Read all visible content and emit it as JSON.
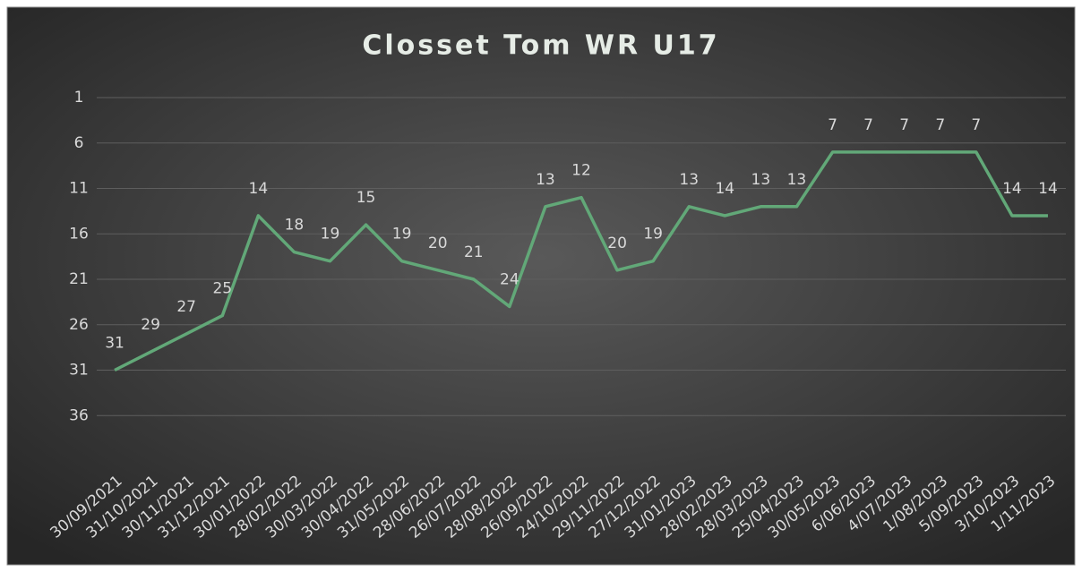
{
  "chart_data": {
    "type": "line",
    "title": "Closset Tom WR U17",
    "categories": [
      "30/09/2021",
      "31/10/2021",
      "30/11/2021",
      "31/12/2021",
      "30/01/2022",
      "28/02/2022",
      "30/03/2022",
      "30/04/2022",
      "31/05/2022",
      "28/06/2022",
      "26/07/2022",
      "28/08/2022",
      "26/09/2022",
      "24/10/2022",
      "29/11/2022",
      "27/12/2022",
      "31/01/2023",
      "28/02/2023",
      "28/03/2023",
      "25/04/2023",
      "30/05/2023",
      "6/06/2023",
      "4/07/2023",
      "1/08/2023",
      "5/09/2023",
      "3/10/2023",
      "1/11/2023"
    ],
    "values": [
      31,
      29,
      27,
      25,
      14,
      18,
      19,
      15,
      19,
      20,
      21,
      24,
      13,
      12,
      20,
      19,
      13,
      14,
      13,
      13,
      7,
      7,
      7,
      7,
      7,
      14,
      14
    ],
    "color": "#62a878",
    "ylim": [
      1,
      41
    ],
    "yticks": [
      1,
      6,
      11,
      16,
      21,
      26,
      31,
      36
    ],
    "y_reversed": true,
    "grid": true
  }
}
